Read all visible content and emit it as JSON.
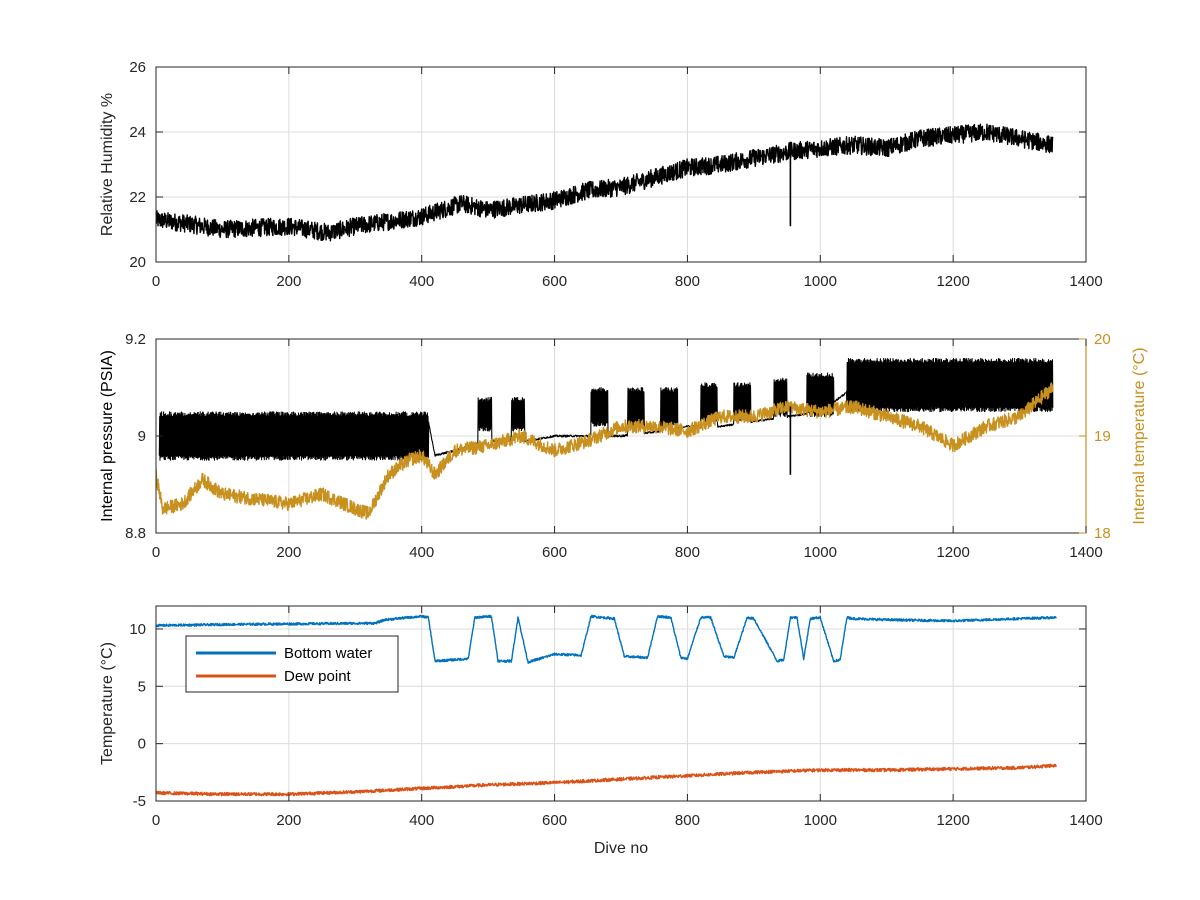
{
  "chart_data": [
    {
      "type": "line",
      "id": "humidity",
      "xlabel": "",
      "ylabel": "Relative Humidity %",
      "xlim": [
        0,
        1400
      ],
      "ylim": [
        20,
        26
      ],
      "xticks": [
        "0",
        "200",
        "400",
        "600",
        "800",
        "1000",
        "1200",
        "1400"
      ],
      "yticks": [
        "20",
        "22",
        "24",
        "26"
      ],
      "grid": true,
      "series": [
        {
          "name": "Relative humidity",
          "color": "#000000",
          "noise": 0.55,
          "x": [
            0,
            40,
            100,
            200,
            260,
            300,
            400,
            460,
            500,
            600,
            650,
            700,
            800,
            850,
            900,
            955,
            1000,
            1050,
            1100,
            1150,
            1200,
            1250,
            1300,
            1350
          ],
          "y": [
            21.3,
            21.2,
            21.0,
            21.1,
            20.9,
            21.1,
            21.4,
            21.8,
            21.6,
            21.9,
            22.2,
            22.3,
            22.9,
            23.0,
            23.2,
            23.4,
            23.5,
            23.6,
            23.5,
            23.8,
            23.9,
            24.0,
            23.8,
            23.6
          ]
        }
      ],
      "spikes": [
        {
          "x": 955,
          "y": 21.1
        }
      ]
    },
    {
      "type": "line",
      "id": "pressure-temperature",
      "xlabel": "",
      "ylabel": "Internal pressure (PSIA)",
      "ylabel_right": "Internal temperature (°C)",
      "xlim": [
        0,
        1400
      ],
      "ylim": [
        8.8,
        9.2
      ],
      "ylim_right": [
        18,
        20
      ],
      "xticks": [
        "0",
        "200",
        "400",
        "600",
        "800",
        "1000",
        "1200",
        "1400"
      ],
      "yticks": [
        "8.8",
        "9",
        "9.2"
      ],
      "yticks_right": [
        "18",
        "19",
        "20"
      ],
      "grid": true,
      "series": [
        {
          "name": "Internal pressure",
          "color": "#000000",
          "axis": "left",
          "x": [
            5,
            50,
            100,
            150,
            200,
            250,
            300,
            330,
            350,
            380,
            410,
            420,
            450,
            500,
            560,
            600,
            650,
            700,
            760,
            800,
            850,
            900,
            950,
            1000,
            1050,
            1100,
            1150,
            1200,
            1250,
            1300,
            1350
          ],
          "y": [
            8.98,
            9.0,
            9.0,
            9.01,
            9.0,
            9.0,
            8.99,
            8.99,
            9.02,
            9.03,
            9.03,
            8.96,
            8.97,
            8.99,
            8.99,
            9.0,
            9.0,
            9.0,
            9.01,
            9.02,
            9.02,
            9.03,
            9.04,
            9.05,
            9.1,
            9.1,
            9.09,
            9.08,
            9.09,
            9.1,
            9.11
          ],
          "band": [
            {
              "from": 5,
              "to": 410,
              "low": 8.95,
              "high": 9.05
            },
            {
              "from": 485,
              "to": 505,
              "low": 9.01,
              "high": 9.08
            },
            {
              "from": 535,
              "to": 555,
              "low": 9.01,
              "high": 9.08
            },
            {
              "from": 655,
              "to": 680,
              "low": 9.02,
              "high": 9.1
            },
            {
              "from": 710,
              "to": 735,
              "low": 9.02,
              "high": 9.1
            },
            {
              "from": 760,
              "to": 785,
              "low": 9.02,
              "high": 9.1
            },
            {
              "from": 820,
              "to": 845,
              "low": 9.03,
              "high": 9.11
            },
            {
              "from": 870,
              "to": 895,
              "low": 9.03,
              "high": 9.11
            },
            {
              "from": 930,
              "to": 950,
              "low": 9.04,
              "high": 9.12
            },
            {
              "from": 980,
              "to": 1020,
              "low": 9.04,
              "high": 9.13
            },
            {
              "from": 1040,
              "to": 1355,
              "low": 9.05,
              "high": 9.16
            }
          ]
        },
        {
          "name": "Internal temperature",
          "color": "#C8901E",
          "axis": "right",
          "noise": 0.14,
          "x": [
            0,
            10,
            40,
            70,
            100,
            150,
            200,
            250,
            300,
            320,
            350,
            380,
            400,
            420,
            450,
            500,
            550,
            600,
            650,
            700,
            750,
            800,
            850,
            900,
            950,
            1000,
            1050,
            1100,
            1150,
            1200,
            1250,
            1300,
            1350
          ],
          "y": [
            18.6,
            18.25,
            18.3,
            18.55,
            18.4,
            18.35,
            18.3,
            18.4,
            18.25,
            18.2,
            18.6,
            18.75,
            18.8,
            18.6,
            18.85,
            18.9,
            19.0,
            18.85,
            18.95,
            19.1,
            19.1,
            19.05,
            19.2,
            19.2,
            19.3,
            19.25,
            19.3,
            19.2,
            19.1,
            18.9,
            19.1,
            19.2,
            19.5
          ]
        }
      ],
      "spikes": [
        {
          "x": 955,
          "y": 8.92
        }
      ]
    },
    {
      "type": "line",
      "id": "temperature",
      "xlabel": "Dive no",
      "ylabel": "Temperature (°C)",
      "xlim": [
        0,
        1400
      ],
      "ylim": [
        -5,
        12
      ],
      "xticks": [
        "0",
        "200",
        "400",
        "600",
        "800",
        "1000",
        "1200",
        "1400"
      ],
      "yticks": [
        "-5",
        "0",
        "5",
        "10"
      ],
      "grid": true,
      "legend": {
        "position": "top-left",
        "entries": [
          "Bottom water",
          "Dew point"
        ]
      },
      "series": [
        {
          "name": "Bottom water",
          "color": "#0072BD",
          "noise": 0.2,
          "x": [
            0,
            120,
            330,
            345,
            380,
            400,
            410,
            420,
            470,
            480,
            505,
            515,
            535,
            545,
            560,
            600,
            640,
            655,
            690,
            705,
            740,
            755,
            775,
            790,
            800,
            820,
            835,
            855,
            870,
            890,
            900,
            935,
            945,
            955,
            965,
            975,
            985,
            1000,
            1020,
            1030,
            1040,
            1050,
            1100,
            1200,
            1300,
            1355
          ],
          "y": [
            10.3,
            10.4,
            10.5,
            10.8,
            11.0,
            11.1,
            11.0,
            7.2,
            7.4,
            11.0,
            11.1,
            7.2,
            7.2,
            11.0,
            7.1,
            7.8,
            7.7,
            11.1,
            10.9,
            7.6,
            7.5,
            11.1,
            11.0,
            7.5,
            7.4,
            11.0,
            11.0,
            7.6,
            7.5,
            11.0,
            10.9,
            7.2,
            7.3,
            11.0,
            11.0,
            7.4,
            10.9,
            11.0,
            7.2,
            7.3,
            11.0,
            10.9,
            10.8,
            10.7,
            10.9,
            11.0
          ]
        },
        {
          "name": "Dew point",
          "color": "#D95319",
          "noise": 0.28,
          "x": [
            0,
            100,
            200,
            300,
            400,
            500,
            600,
            700,
            800,
            900,
            1000,
            1100,
            1200,
            1300,
            1355
          ],
          "y": [
            -4.3,
            -4.4,
            -4.4,
            -4.2,
            -3.9,
            -3.6,
            -3.4,
            -3.1,
            -2.8,
            -2.5,
            -2.3,
            -2.3,
            -2.2,
            -2.1,
            -1.9
          ]
        }
      ],
      "spikes": []
    }
  ]
}
